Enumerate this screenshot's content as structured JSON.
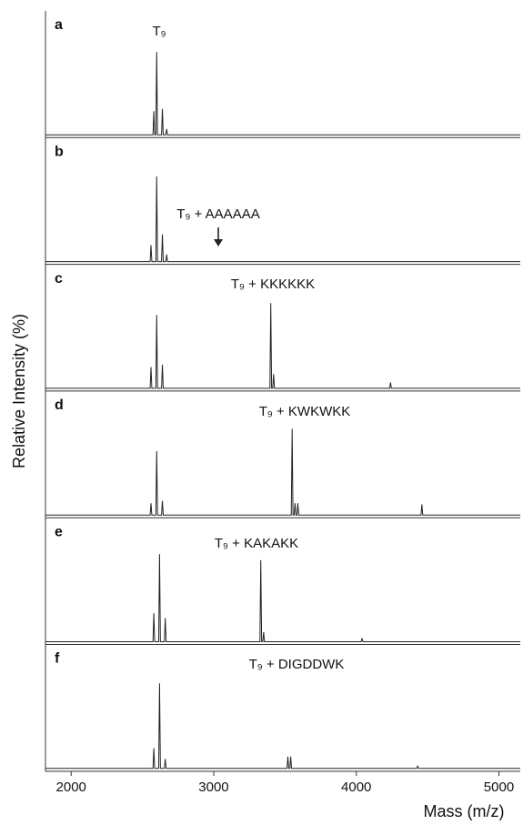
{
  "chart_data": [
    {
      "type": "line",
      "panel_label": "a",
      "annotation": "T₉",
      "ylabel": "Relative Intensity (%)",
      "color": "#222222",
      "x": [
        1820,
        2574,
        2580,
        2586,
        2594,
        2600,
        2606,
        2634,
        2640,
        2646,
        2664,
        2670,
        2676,
        5150
      ],
      "values": [
        0,
        0,
        20,
        0,
        0,
        70,
        0,
        0,
        22,
        0,
        0,
        5,
        0,
        0
      ],
      "xlim": [
        1820,
        5150
      ],
      "ylim": [
        0,
        100
      ]
    },
    {
      "type": "line",
      "panel_label": "b",
      "annotation": "T₉ + AAAAAA",
      "color": "#222222",
      "x": [
        1820,
        2554,
        2560,
        2566,
        2594,
        2600,
        2606,
        2634,
        2640,
        2646,
        2664,
        2670,
        2676,
        5150
      ],
      "values": [
        0,
        0,
        14,
        0,
        0,
        72,
        0,
        0,
        23,
        0,
        0,
        6,
        0,
        0
      ],
      "xlim": [
        1820,
        5150
      ],
      "ylim": [
        0,
        100
      ]
    },
    {
      "type": "line",
      "panel_label": "c",
      "annotation": "T₉ + KKKKKK",
      "color": "#222222",
      "x": [
        1820,
        2554,
        2560,
        2566,
        2594,
        2600,
        2606,
        2634,
        2640,
        2646,
        3394,
        3400,
        3406,
        3414,
        3420,
        3426,
        4234,
        4240,
        4246,
        5150
      ],
      "values": [
        0,
        0,
        18,
        0,
        0,
        62,
        0,
        0,
        20,
        0,
        0,
        72,
        0,
        0,
        12,
        0,
        0,
        5,
        0,
        0
      ],
      "xlim": [
        1820,
        5150
      ],
      "ylim": [
        0,
        100
      ]
    },
    {
      "type": "line",
      "panel_label": "d",
      "annotation": "T₉ + KWKWKK",
      "color": "#222222",
      "x": [
        1820,
        2554,
        2560,
        2566,
        2594,
        2600,
        2606,
        2634,
        2640,
        2646,
        3544,
        3550,
        3556,
        3564,
        3570,
        3576,
        3584,
        3590,
        3596,
        4454,
        4460,
        4466,
        5150
      ],
      "values": [
        0,
        0,
        10,
        0,
        0,
        54,
        0,
        0,
        12,
        0,
        0,
        73,
        0,
        0,
        10,
        0,
        0,
        10,
        0,
        0,
        9,
        0,
        0
      ],
      "xlim": [
        1820,
        5150
      ],
      "ylim": [
        0,
        100
      ]
    },
    {
      "type": "line",
      "panel_label": "e",
      "annotation": "T₉ + KAKAKK",
      "color": "#222222",
      "x": [
        1820,
        2574,
        2580,
        2586,
        2614,
        2620,
        2626,
        2654,
        2660,
        2666,
        3324,
        3330,
        3336,
        3344,
        3350,
        3356,
        4034,
        4040,
        4046,
        5150
      ],
      "values": [
        0,
        0,
        24,
        0,
        0,
        74,
        0,
        0,
        20,
        0,
        0,
        69,
        0,
        0,
        8,
        0,
        0,
        3,
        0,
        0
      ],
      "xlim": [
        1820,
        5150
      ],
      "ylim": [
        0,
        100
      ]
    },
    {
      "type": "line",
      "panel_label": "f",
      "annotation": "T₉ + DIGDDWK",
      "color": "#222222",
      "x": [
        1820,
        2574,
        2580,
        2586,
        2614,
        2620,
        2626,
        2654,
        2660,
        2666,
        3514,
        3520,
        3526,
        3534,
        3540,
        3546,
        4424,
        4430,
        4436,
        5150
      ],
      "values": [
        0,
        0,
        17,
        0,
        0,
        72,
        0,
        0,
        8,
        0,
        0,
        10,
        0,
        0,
        10,
        0,
        0,
        2,
        0,
        0
      ],
      "xlim": [
        1820,
        5150
      ],
      "ylim": [
        0,
        100
      ],
      "xticks": [
        2000,
        3000,
        4000,
        5000
      ],
      "xlabel": "Mass (m/z)"
    }
  ]
}
